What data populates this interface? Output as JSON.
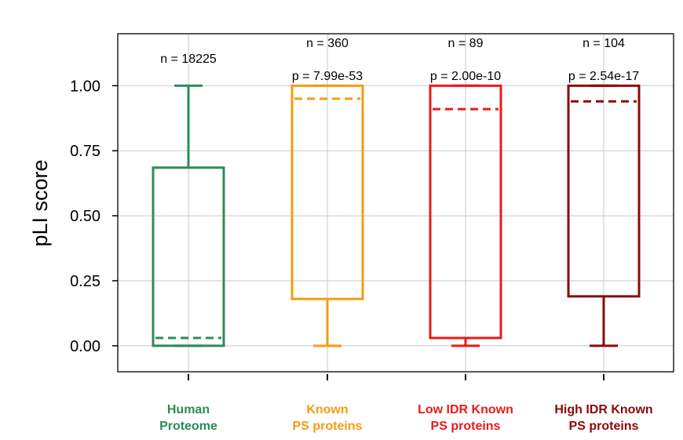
{
  "chart_data": {
    "type": "box",
    "ylabel": "pLI score",
    "ylim": [
      -0.1,
      1.2
    ],
    "yticks": [
      "0.00",
      "0.25",
      "0.50",
      "0.75",
      "1.00"
    ],
    "grid": true,
    "categories": [
      {
        "lines": [
          "Human",
          "Proteome"
        ],
        "color": "#2e8b57",
        "whisker_low": 0.0,
        "q1": 0.0,
        "median": 0.03,
        "q3": 0.685,
        "whisker_high": 1.0,
        "n_text": "n = 18225",
        "p_text": ""
      },
      {
        "lines": [
          "Known",
          "PS proteins"
        ],
        "color": "#f39c12",
        "whisker_low": 0.0,
        "q1": 0.18,
        "median": 0.95,
        "q3": 1.0,
        "whisker_high": 1.0,
        "n_text": "n = 360",
        "p_text": "p = 7.99e-53"
      },
      {
        "lines": [
          "Low IDR Known",
          "PS proteins"
        ],
        "color": "#e81a1a",
        "whisker_low": 0.0,
        "q1": 0.03,
        "median": 0.91,
        "q3": 1.0,
        "whisker_high": 1.0,
        "n_text": "n = 89",
        "p_text": "p = 2.00e-10"
      },
      {
        "lines": [
          "High IDR Known",
          "PS proteins"
        ],
        "color": "#8b0a0a",
        "whisker_low": 0.0,
        "q1": 0.19,
        "median": 0.94,
        "q3": 1.0,
        "whisker_high": 1.0,
        "n_text": "n = 104",
        "p_text": "p = 2.54e-17"
      }
    ]
  }
}
